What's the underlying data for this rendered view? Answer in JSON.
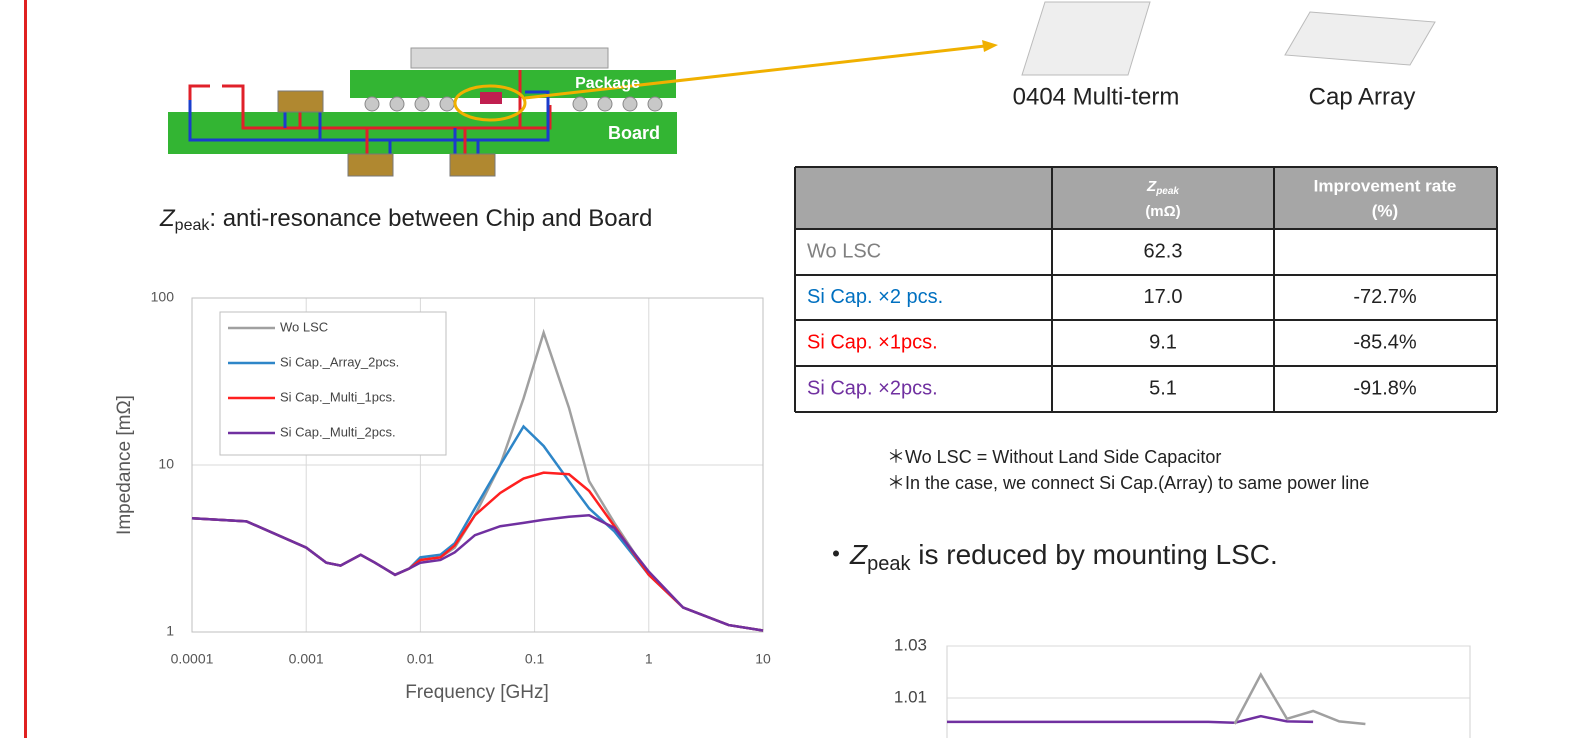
{
  "diagram": {
    "package_label": "Package",
    "board_label": "Board",
    "parts": [
      "0404 Multi-term",
      "Cap Array"
    ]
  },
  "caption": {
    "z": "Z",
    "sub": "peak",
    "text": ": anti-resonance between Chip and Board"
  },
  "chart_data": [
    {
      "type": "line",
      "ylabel": "Impedance [mΩ]",
      "xlabel": "Frequency [GHz]",
      "log_x": true,
      "log_y": true,
      "grid": true,
      "x": [
        0.0001,
        0.0003,
        0.001,
        0.0015,
        0.002,
        0.003,
        0.004,
        0.006,
        0.008,
        0.01,
        0.015,
        0.02,
        0.03,
        0.05,
        0.08,
        0.12,
        0.2,
        0.3,
        0.5,
        1,
        2,
        5,
        10
      ],
      "xlim": [
        0.0001,
        10
      ],
      "ylim": [
        1,
        100
      ],
      "xticks": [
        0.0001,
        0.001,
        0.01,
        0.1,
        1,
        10
      ],
      "yticks": [
        1,
        10,
        100
      ],
      "series": [
        {
          "name": "Wo LSC",
          "color": "#a0a0a0",
          "values": [
            4.8,
            4.6,
            3.2,
            2.6,
            2.5,
            2.9,
            2.6,
            2.2,
            2.4,
            2.7,
            2.8,
            3.2,
            5,
            10,
            25,
            62,
            22,
            8,
            4.5,
            2.2,
            1.4,
            1.1,
            1.02
          ]
        },
        {
          "name": "Si Cap._Array_2pcs.",
          "color": "#2e86c8",
          "values": [
            4.8,
            4.6,
            3.2,
            2.6,
            2.5,
            2.9,
            2.6,
            2.2,
            2.4,
            2.8,
            2.9,
            3.4,
            5.5,
            10,
            17,
            13,
            8,
            5.5,
            4,
            2.2,
            1.4,
            1.1,
            1.02
          ]
        },
        {
          "name": "Si Cap._Multi_1pcs.",
          "color": "#ff2020",
          "values": [
            4.8,
            4.6,
            3.2,
            2.6,
            2.5,
            2.9,
            2.6,
            2.2,
            2.4,
            2.7,
            2.8,
            3.3,
            5,
            6.8,
            8.3,
            9,
            8.8,
            7,
            4.3,
            2.2,
            1.4,
            1.1,
            1.02
          ]
        },
        {
          "name": "Si Cap._Multi_2pcs.",
          "color": "#7030a0",
          "values": [
            4.8,
            4.6,
            3.2,
            2.6,
            2.5,
            2.9,
            2.6,
            2.2,
            2.4,
            2.6,
            2.7,
            3,
            3.8,
            4.3,
            4.5,
            4.7,
            4.9,
            5,
            4.2,
            2.3,
            1.4,
            1.1,
            1.02
          ]
        }
      ],
      "legend": "upper-left"
    },
    {
      "type": "line",
      "ylim": [
        1.0,
        1.03
      ],
      "yticks": [
        1.03,
        1.01
      ],
      "series": [
        {
          "color": "#7030a0",
          "values": [
            1.0008,
            1.0008,
            1.0008,
            1.0008,
            1.0008,
            1.0008,
            1.0008,
            1.0008,
            1.0008,
            1.0008,
            1.0008,
            1.0005,
            1.003,
            1.001,
            1.0008,
            null,
            null,
            null,
            null,
            null,
            null
          ]
        },
        {
          "color": "#a0a0a0",
          "values": [
            null,
            null,
            null,
            null,
            null,
            null,
            null,
            null,
            null,
            null,
            null,
            1.0,
            1.019,
            1.002,
            1.005,
            1.001,
            1.0,
            null,
            null,
            null,
            null
          ]
        }
      ]
    }
  ],
  "table": {
    "header": [
      {
        "z": "Z",
        "sub": "peak",
        "unit": "(mΩ)"
      },
      {
        "lines": [
          "Improvement rate",
          "(%)"
        ]
      }
    ],
    "rows": [
      {
        "label": "Wo LSC",
        "color": "#808080",
        "value": "62.3"
      },
      {
        "label": "Si Cap. ×2 pcs.",
        "color": "#0070c0",
        "value": "17.0",
        "rate": "-72.7%"
      },
      {
        "label": "Si Cap. ×1pcs.",
        "color": "#ff0000",
        "value": "9.1",
        "rate": "-85.4%"
      },
      {
        "label": "Si Cap. ×2pcs.",
        "color": "#7030a0",
        "value": "5.1",
        "rate": "-91.8%"
      }
    ]
  },
  "notes": [
    "＊Wo LSC = Without Land Side Capacitor",
    "＊In the case, we connect Si Cap.(Array) to same power line"
  ],
  "bullet": {
    "mark": "・",
    "z": "Z",
    "sub": "peak",
    "text": " is reduced by mounting LSC."
  }
}
